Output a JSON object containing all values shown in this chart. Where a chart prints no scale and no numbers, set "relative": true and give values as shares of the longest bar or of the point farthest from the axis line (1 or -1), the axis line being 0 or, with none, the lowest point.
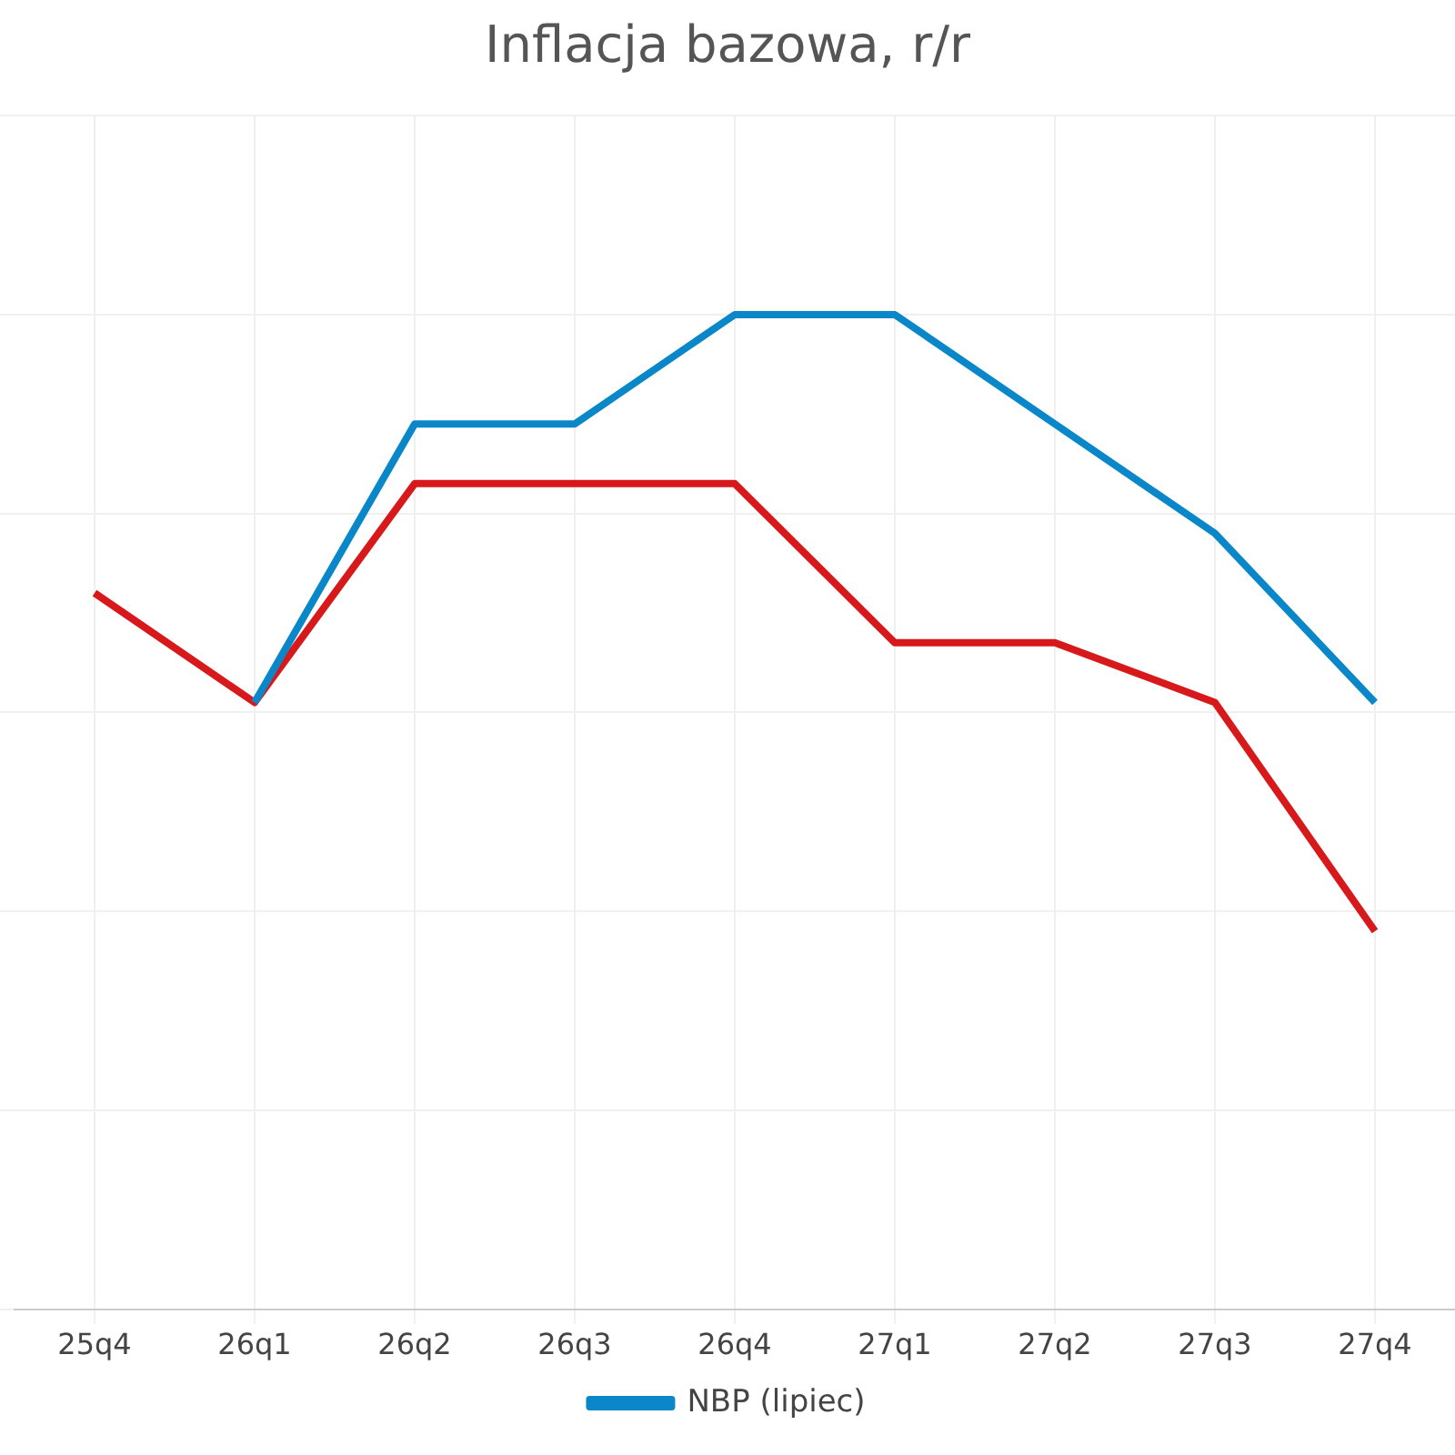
{
  "chart_data": {
    "type": "line",
    "title": "Inflacja bazowa, r/r",
    "relative": true,
    "grid": true,
    "legend": "bottom",
    "marker": "none",
    "categories": [
      "25q4",
      "26q1",
      "26q2",
      "26q3",
      "26q4",
      "27q1",
      "27q2",
      "27q3",
      "27q4"
    ],
    "series": [
      {
        "name": "NBP (lipiec)",
        "color": "#0a87c9",
        "values": [
          null,
          0.61,
          0.89,
          0.89,
          1,
          1,
          0.89,
          0.78,
          0.61
        ]
      },
      {
        "color": "#d7191c",
        "values": [
          0.72,
          0.61,
          0.83,
          0.83,
          0.83,
          0.67,
          0.67,
          0.61,
          0.38
        ]
      }
    ]
  }
}
